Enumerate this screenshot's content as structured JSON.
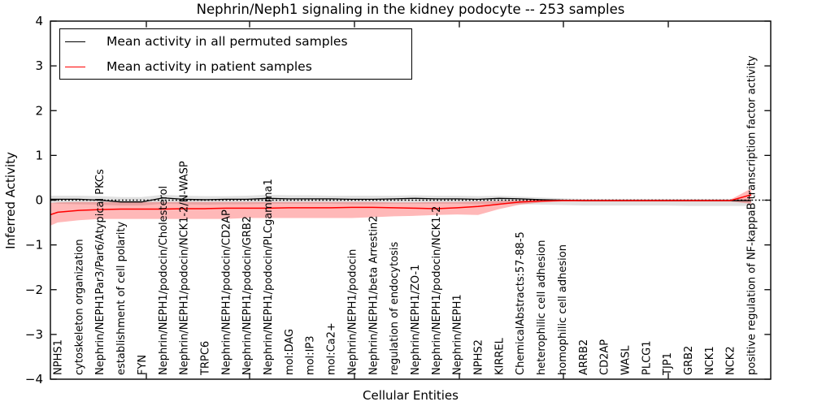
{
  "title": "Nephrin/Neph1 signaling in the kidney podocyte -- 253 samples",
  "axes": {
    "x_label": "Cellular Entities",
    "y_label": "Inferred Activity",
    "y_tick_values": [
      4,
      3,
      2,
      1,
      0,
      -1,
      -2,
      -3,
      -4
    ],
    "y_tick_labels": [
      "4",
      "3",
      "2",
      "1",
      "0",
      "−1",
      "−2",
      "−3",
      "−4"
    ]
  },
  "legend": {
    "entries": [
      {
        "label": "Mean activity in all permuted samples",
        "color": "#000000"
      },
      {
        "label": "Mean activity in patient samples",
        "color": "#ff0000"
      }
    ]
  },
  "colors": {
    "permuted_line": "#000000",
    "permuted_band": "#9a9a9a",
    "patient_line": "#ff0000",
    "patient_band": "#ff0000",
    "zero_line": "#000000",
    "axis": "#000000"
  },
  "chart_data": {
    "type": "line",
    "title": "Nephrin/Neph1 signaling in the kidney podocyte -- 253 samples",
    "xlabel": "Cellular Entities",
    "ylabel": "Inferred Activity",
    "ylim": [
      -4,
      4
    ],
    "grid": false,
    "legend_position": "upper left",
    "zero_line": true,
    "categories": [
      "NPHS1",
      "cytoskeleton organization",
      "Nephrin/NEPH1Par3/Par6/Atypical PKCs",
      "establishment of cell polarity",
      "FYN",
      "Nephrin/NEPH1/podocin/Cholesterol",
      "Nephrin/NEPH1/podocin/NCK1-2/N-WASP",
      "TRPC6",
      "Nephrin/NEPH1/podocin/CD2AP",
      "Nephrin/NEPH1/podocin/GRB2",
      "Nephrin/NEPH1/podocin/PLCgamma1",
      "mol:DAG",
      "mol:IP3",
      "mol:Ca2+",
      "Nephrin/NEPH1/podocin",
      "Nephrin/NEPH1/beta Arrestin2",
      "regulation of endocytosis",
      "Nephrin/NEPH1/ZO-1",
      "Nephrin/NEPH1/podocin/NCK1-2",
      "Nephrin/NEPH1",
      "NPHS2",
      "KIRREL",
      "ChemicalAbstracts:57-88-5",
      "heterophilic cell adhesion",
      "homophilic cell adhesion",
      "ARRB2",
      "CD2AP",
      "WASL",
      "PLCG1",
      "TJP1",
      "GRB2",
      "NCK1",
      "NCK2",
      "positive regulation of NF-kappaB transcription factor activity"
    ],
    "series": [
      {
        "name": "Mean activity in all permuted samples",
        "color": "#000000",
        "values": [
          0.02,
          0.02,
          0.0,
          -0.04,
          -0.04,
          0.05,
          0.02,
          0.01,
          0.02,
          0.02,
          0.04,
          0.03,
          0.03,
          0.03,
          0.02,
          0.02,
          0.03,
          0.04,
          0.03,
          0.03,
          0.02,
          0.04,
          0.03,
          0.01,
          0.0,
          -0.01,
          -0.01,
          -0.01,
          -0.01,
          -0.01,
          -0.01,
          -0.01,
          -0.01,
          -0.01
        ],
        "band_upper": [
          0.1,
          0.1,
          0.09,
          0.07,
          0.07,
          0.12,
          0.1,
          0.09,
          0.09,
          0.1,
          0.12,
          0.11,
          0.11,
          0.1,
          0.1,
          0.1,
          0.1,
          0.11,
          0.1,
          0.1,
          0.09,
          0.1,
          0.08,
          0.06,
          0.04,
          0.03,
          0.03,
          0.03,
          0.03,
          0.03,
          0.03,
          0.03,
          0.03,
          0.03
        ],
        "band_lower": [
          -0.08,
          -0.09,
          -0.1,
          -0.12,
          -0.12,
          -0.08,
          -0.09,
          -0.1,
          -0.09,
          -0.09,
          -0.08,
          -0.08,
          -0.08,
          -0.08,
          -0.09,
          -0.09,
          -0.08,
          -0.08,
          -0.08,
          -0.08,
          -0.09,
          -0.08,
          -0.09,
          -0.1,
          -0.11,
          -0.12,
          -0.12,
          -0.12,
          -0.12,
          -0.12,
          -0.13,
          -0.13,
          -0.13,
          -0.13
        ],
        "band_opacity": 0.3
      },
      {
        "name": "Mean activity in patient samples",
        "color": "#ff0000",
        "values": [
          -0.27,
          -0.23,
          -0.21,
          -0.2,
          -0.2,
          -0.2,
          -0.19,
          -0.19,
          -0.18,
          -0.18,
          -0.18,
          -0.17,
          -0.17,
          -0.17,
          -0.16,
          -0.16,
          -0.17,
          -0.18,
          -0.19,
          -0.17,
          -0.14,
          -0.09,
          -0.04,
          -0.02,
          -0.01,
          -0.01,
          -0.01,
          -0.01,
          -0.01,
          -0.01,
          -0.01,
          -0.01,
          -0.01,
          0.12
        ],
        "band_upper": [
          -0.05,
          -0.04,
          -0.04,
          -0.04,
          -0.04,
          -0.04,
          -0.04,
          -0.04,
          -0.04,
          -0.04,
          -0.04,
          -0.04,
          -0.04,
          -0.04,
          -0.04,
          -0.04,
          -0.05,
          -0.05,
          -0.04,
          -0.04,
          -0.03,
          -0.02,
          0.0,
          0.01,
          0.01,
          0.01,
          0.01,
          0.01,
          0.01,
          0.01,
          0.01,
          0.01,
          0.01,
          0.26
        ],
        "band_lower": [
          -0.5,
          -0.45,
          -0.42,
          -0.42,
          -0.42,
          -0.42,
          -0.42,
          -0.42,
          -0.42,
          -0.4,
          -0.4,
          -0.4,
          -0.4,
          -0.4,
          -0.4,
          -0.38,
          -0.36,
          -0.35,
          -0.33,
          -0.32,
          -0.33,
          -0.2,
          -0.1,
          -0.05,
          -0.03,
          -0.03,
          -0.03,
          -0.03,
          -0.03,
          -0.03,
          -0.03,
          -0.03,
          -0.03,
          -0.08
        ],
        "band_opacity": 0.28
      }
    ]
  }
}
